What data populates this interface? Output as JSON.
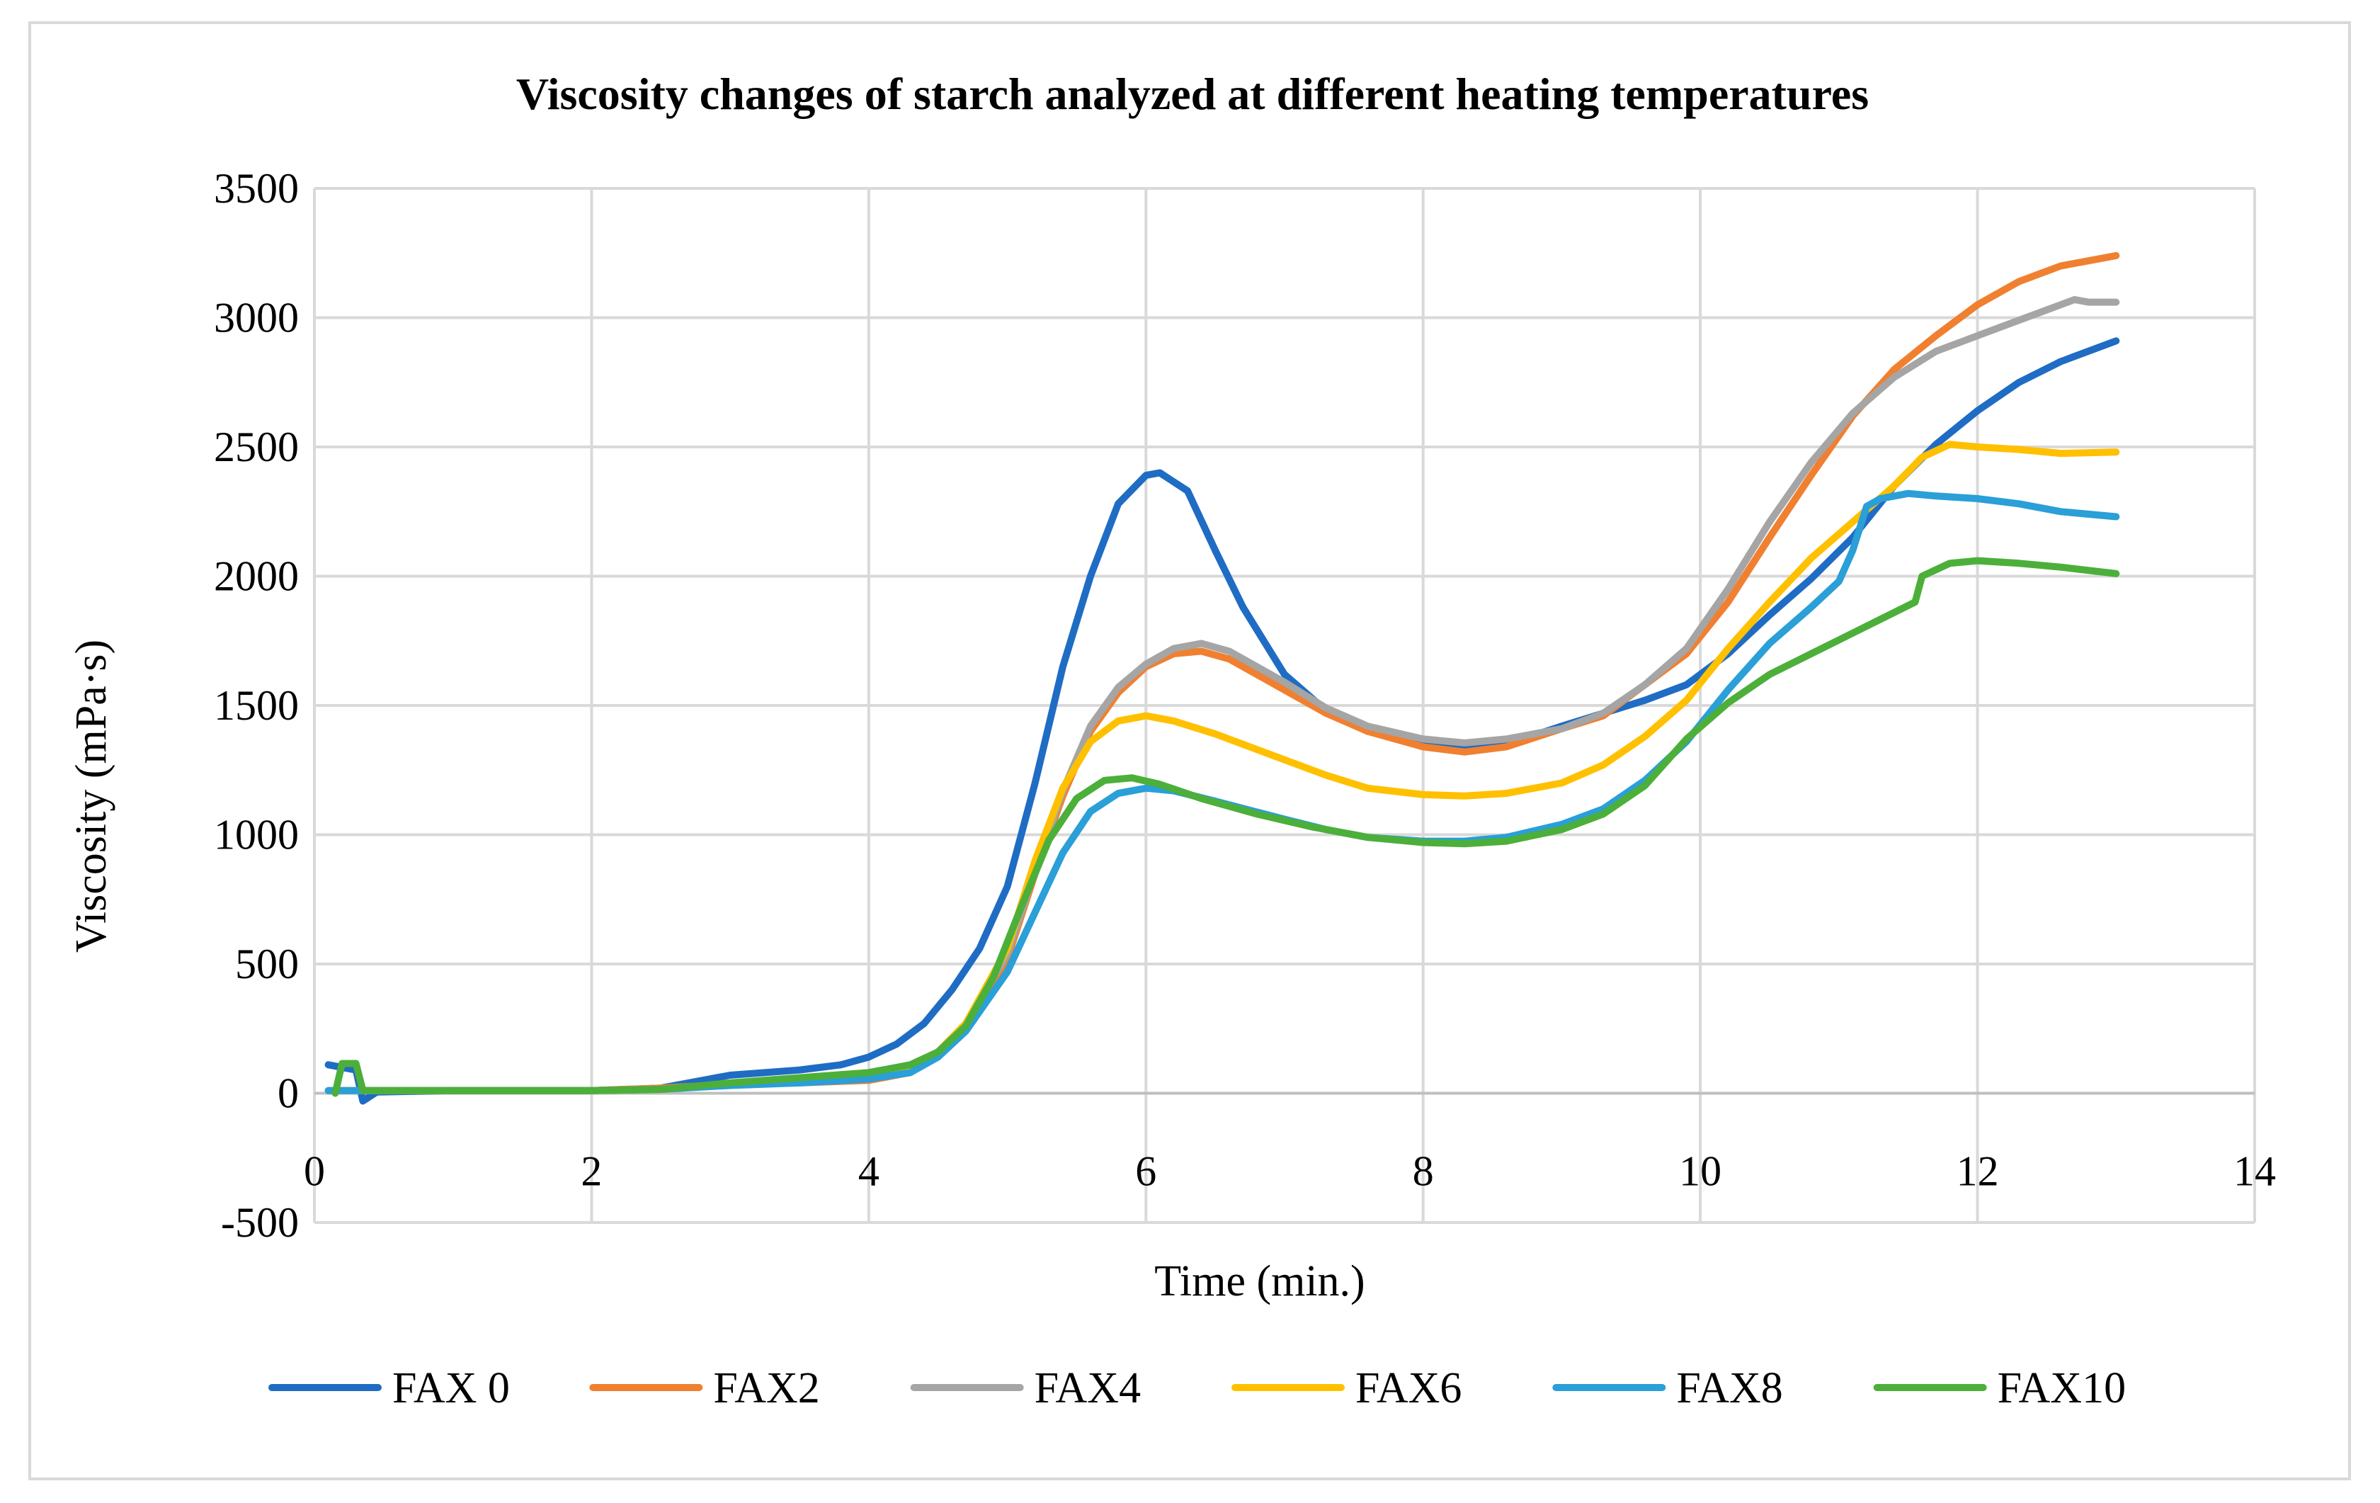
{
  "chart_data": {
    "type": "line",
    "title": "Viscosity changes of starch analyzed at different heating temperatures",
    "xlabel": "Time (min.)",
    "ylabel": "Viscosity (mPa·s)",
    "xlim": [
      0,
      14
    ],
    "ylim": [
      -500,
      3500
    ],
    "xticks": [
      0,
      2,
      4,
      6,
      8,
      10,
      12,
      14
    ],
    "yticks": [
      -500,
      0,
      500,
      1000,
      1500,
      2000,
      2500,
      3000,
      3500
    ],
    "xtick_labels": [
      "0",
      "2",
      "4",
      "6",
      "8",
      "10",
      "12",
      "14"
    ],
    "ytick_labels": [
      "-500",
      "0",
      "500",
      "1000",
      "1500",
      "2000",
      "2500",
      "3000",
      "3500"
    ],
    "grid": true,
    "legend_position": "bottom",
    "series": [
      {
        "name": "FAX 0",
        "color": "#1f6cc4",
        "points": [
          [
            0.1,
            110
          ],
          [
            0.3,
            90
          ],
          [
            0.35,
            -30
          ],
          [
            0.45,
            5
          ],
          [
            1,
            10
          ],
          [
            2,
            10
          ],
          [
            2.5,
            20
          ],
          [
            3,
            70
          ],
          [
            3.5,
            90
          ],
          [
            3.8,
            110
          ],
          [
            4,
            140
          ],
          [
            4.2,
            190
          ],
          [
            4.4,
            270
          ],
          [
            4.6,
            400
          ],
          [
            4.8,
            560
          ],
          [
            5,
            800
          ],
          [
            5.2,
            1200
          ],
          [
            5.4,
            1650
          ],
          [
            5.6,
            2000
          ],
          [
            5.8,
            2280
          ],
          [
            6,
            2390
          ],
          [
            6.1,
            2400
          ],
          [
            6.3,
            2330
          ],
          [
            6.5,
            2100
          ],
          [
            6.7,
            1880
          ],
          [
            7,
            1620
          ],
          [
            7.3,
            1480
          ],
          [
            7.6,
            1400
          ],
          [
            8,
            1350
          ],
          [
            8.3,
            1330
          ],
          [
            8.6,
            1350
          ],
          [
            9,
            1420
          ],
          [
            9.3,
            1470
          ],
          [
            9.6,
            1520
          ],
          [
            9.9,
            1580
          ],
          [
            10.2,
            1700
          ],
          [
            10.5,
            1850
          ],
          [
            10.8,
            1990
          ],
          [
            11.1,
            2150
          ],
          [
            11.4,
            2350
          ],
          [
            11.7,
            2510
          ],
          [
            12,
            2640
          ],
          [
            12.3,
            2750
          ],
          [
            12.6,
            2830
          ],
          [
            13,
            2910
          ]
        ]
      },
      {
        "name": "FAX2",
        "color": "#f08030",
        "points": [
          [
            0.1,
            10
          ],
          [
            0.5,
            10
          ],
          [
            1,
            10
          ],
          [
            2,
            10
          ],
          [
            2.5,
            20
          ],
          [
            3,
            35
          ],
          [
            3.5,
            40
          ],
          [
            4,
            50
          ],
          [
            4.3,
            80
          ],
          [
            4.5,
            150
          ],
          [
            4.7,
            250
          ],
          [
            5,
            520
          ],
          [
            5.2,
            850
          ],
          [
            5.4,
            1150
          ],
          [
            5.6,
            1400
          ],
          [
            5.8,
            1550
          ],
          [
            6,
            1650
          ],
          [
            6.2,
            1700
          ],
          [
            6.4,
            1710
          ],
          [
            6.6,
            1680
          ],
          [
            6.8,
            1620
          ],
          [
            7,
            1560
          ],
          [
            7.3,
            1470
          ],
          [
            7.6,
            1400
          ],
          [
            8,
            1340
          ],
          [
            8.3,
            1320
          ],
          [
            8.6,
            1340
          ],
          [
            9,
            1410
          ],
          [
            9.3,
            1460
          ],
          [
            9.6,
            1580
          ],
          [
            9.9,
            1700
          ],
          [
            10.2,
            1900
          ],
          [
            10.5,
            2150
          ],
          [
            10.8,
            2390
          ],
          [
            11.1,
            2620
          ],
          [
            11.4,
            2800
          ],
          [
            11.7,
            2930
          ],
          [
            12,
            3050
          ],
          [
            12.3,
            3140
          ],
          [
            12.6,
            3200
          ],
          [
            13,
            3240
          ]
        ]
      },
      {
        "name": "FAX4",
        "color": "#a5a5a5",
        "points": [
          [
            0.1,
            10
          ],
          [
            0.5,
            10
          ],
          [
            1,
            10
          ],
          [
            2,
            10
          ],
          [
            2.5,
            15
          ],
          [
            3,
            35
          ],
          [
            3.5,
            45
          ],
          [
            4,
            60
          ],
          [
            4.3,
            85
          ],
          [
            4.5,
            160
          ],
          [
            4.7,
            270
          ],
          [
            5,
            540
          ],
          [
            5.2,
            860
          ],
          [
            5.4,
            1170
          ],
          [
            5.6,
            1420
          ],
          [
            5.8,
            1570
          ],
          [
            6,
            1660
          ],
          [
            6.2,
            1720
          ],
          [
            6.4,
            1740
          ],
          [
            6.6,
            1710
          ],
          [
            6.8,
            1650
          ],
          [
            7,
            1590
          ],
          [
            7.3,
            1490
          ],
          [
            7.6,
            1420
          ],
          [
            8,
            1370
          ],
          [
            8.3,
            1355
          ],
          [
            8.6,
            1370
          ],
          [
            9,
            1410
          ],
          [
            9.3,
            1470
          ],
          [
            9.6,
            1580
          ],
          [
            9.9,
            1720
          ],
          [
            10.2,
            1950
          ],
          [
            10.5,
            2210
          ],
          [
            10.8,
            2440
          ],
          [
            11.1,
            2630
          ],
          [
            11.4,
            2770
          ],
          [
            11.7,
            2870
          ],
          [
            12,
            2930
          ],
          [
            12.3,
            2990
          ],
          [
            12.5,
            3030
          ],
          [
            12.7,
            3070
          ],
          [
            12.8,
            3060
          ],
          [
            13,
            3060
          ]
        ]
      },
      {
        "name": "FAX6",
        "color": "#ffc000",
        "points": [
          [
            0.1,
            10
          ],
          [
            0.5,
            10
          ],
          [
            1,
            10
          ],
          [
            2,
            10
          ],
          [
            2.5,
            15
          ],
          [
            3,
            35
          ],
          [
            3.5,
            45
          ],
          [
            4,
            60
          ],
          [
            4.3,
            90
          ],
          [
            4.5,
            160
          ],
          [
            4.7,
            270
          ],
          [
            5,
            560
          ],
          [
            5.2,
            900
          ],
          [
            5.4,
            1180
          ],
          [
            5.6,
            1360
          ],
          [
            5.8,
            1440
          ],
          [
            6,
            1460
          ],
          [
            6.2,
            1440
          ],
          [
            6.5,
            1390
          ],
          [
            7,
            1290
          ],
          [
            7.3,
            1230
          ],
          [
            7.6,
            1180
          ],
          [
            8,
            1155
          ],
          [
            8.3,
            1150
          ],
          [
            8.6,
            1160
          ],
          [
            9,
            1200
          ],
          [
            9.3,
            1270
          ],
          [
            9.6,
            1380
          ],
          [
            9.9,
            1520
          ],
          [
            10.2,
            1720
          ],
          [
            10.5,
            1900
          ],
          [
            10.8,
            2070
          ],
          [
            11.1,
            2210
          ],
          [
            11.4,
            2350
          ],
          [
            11.6,
            2460
          ],
          [
            11.8,
            2510
          ],
          [
            12,
            2500
          ],
          [
            12.3,
            2490
          ],
          [
            12.6,
            2475
          ],
          [
            13,
            2480
          ]
        ]
      },
      {
        "name": "FAX8",
        "color": "#2a9fd8",
        "points": [
          [
            0.1,
            10
          ],
          [
            0.5,
            10
          ],
          [
            1,
            10
          ],
          [
            2,
            10
          ],
          [
            2.5,
            15
          ],
          [
            3,
            30
          ],
          [
            3.5,
            40
          ],
          [
            4,
            55
          ],
          [
            4.3,
            80
          ],
          [
            4.5,
            140
          ],
          [
            4.7,
            240
          ],
          [
            5,
            470
          ],
          [
            5.2,
            700
          ],
          [
            5.4,
            930
          ],
          [
            5.6,
            1090
          ],
          [
            5.8,
            1160
          ],
          [
            6,
            1180
          ],
          [
            6.2,
            1170
          ],
          [
            6.5,
            1130
          ],
          [
            7,
            1060
          ],
          [
            7.3,
            1020
          ],
          [
            7.6,
            990
          ],
          [
            8,
            975
          ],
          [
            8.3,
            975
          ],
          [
            8.6,
            990
          ],
          [
            9,
            1040
          ],
          [
            9.3,
            1100
          ],
          [
            9.6,
            1210
          ],
          [
            9.9,
            1360
          ],
          [
            10.2,
            1560
          ],
          [
            10.5,
            1740
          ],
          [
            10.8,
            1880
          ],
          [
            11,
            1980
          ],
          [
            11.1,
            2100
          ],
          [
            11.2,
            2270
          ],
          [
            11.3,
            2300
          ],
          [
            11.5,
            2320
          ],
          [
            11.7,
            2310
          ],
          [
            12,
            2300
          ],
          [
            12.3,
            2280
          ],
          [
            12.6,
            2250
          ],
          [
            13,
            2230
          ]
        ]
      },
      {
        "name": "FAX10",
        "color": "#4caf3a",
        "points": [
          [
            0.15,
            0
          ],
          [
            0.2,
            115
          ],
          [
            0.3,
            115
          ],
          [
            0.35,
            10
          ],
          [
            0.5,
            10
          ],
          [
            1,
            10
          ],
          [
            2,
            10
          ],
          [
            2.5,
            15
          ],
          [
            3,
            40
          ],
          [
            3.5,
            60
          ],
          [
            4,
            80
          ],
          [
            4.3,
            110
          ],
          [
            4.5,
            160
          ],
          [
            4.7,
            260
          ],
          [
            4.9,
            450
          ],
          [
            5.1,
            720
          ],
          [
            5.3,
            980
          ],
          [
            5.5,
            1140
          ],
          [
            5.7,
            1210
          ],
          [
            5.9,
            1220
          ],
          [
            6.1,
            1195
          ],
          [
            6.4,
            1140
          ],
          [
            6.8,
            1080
          ],
          [
            7.2,
            1030
          ],
          [
            7.6,
            990
          ],
          [
            8,
            970
          ],
          [
            8.3,
            965
          ],
          [
            8.6,
            975
          ],
          [
            9,
            1020
          ],
          [
            9.3,
            1080
          ],
          [
            9.6,
            1190
          ],
          [
            9.9,
            1370
          ],
          [
            10.2,
            1510
          ],
          [
            10.5,
            1620
          ],
          [
            10.8,
            1700
          ],
          [
            11.1,
            1780
          ],
          [
            11.4,
            1860
          ],
          [
            11.55,
            1900
          ],
          [
            11.6,
            2000
          ],
          [
            11.8,
            2050
          ],
          [
            12,
            2060
          ],
          [
            12.3,
            2050
          ],
          [
            12.6,
            2035
          ],
          [
            13,
            2010
          ]
        ]
      }
    ]
  }
}
